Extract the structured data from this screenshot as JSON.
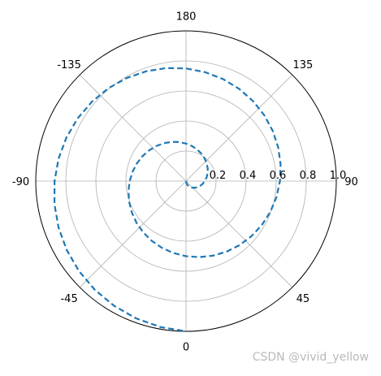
{
  "chart_data": {
    "type": "line",
    "projection": "polar",
    "theta_zero_location": "bottom",
    "theta_direction": "counterclockwise",
    "theta_unit": "degrees",
    "angle_labels": [
      {
        "angle": 0,
        "label": "0"
      },
      {
        "angle": 45,
        "label": "45"
      },
      {
        "angle": 90,
        "label": "90"
      },
      {
        "angle": 135,
        "label": "135"
      },
      {
        "angle": 180,
        "label": "180"
      },
      {
        "angle": -135,
        "label": "-135"
      },
      {
        "angle": -90,
        "label": "-90"
      },
      {
        "angle": -45,
        "label": "-45"
      }
    ],
    "r_ticks": [
      0.2,
      0.4,
      0.6,
      0.8,
      1.0
    ],
    "r_tick_labels": [
      "0.2",
      "0.4",
      "0.6",
      "0.8",
      "1.0"
    ],
    "rlim": [
      0,
      1.0
    ],
    "r_label_angle": 90,
    "grid": true,
    "series": [
      {
        "line_style": "dashed",
        "color": "#1f77b4",
        "theta": [
          0,
          10,
          20,
          30,
          40,
          50,
          60,
          70,
          80,
          90,
          100,
          110,
          120,
          130,
          140,
          150,
          160,
          170,
          180,
          190,
          200,
          210,
          220,
          230,
          240,
          250,
          260,
          270,
          280,
          290,
          300,
          310,
          320,
          330,
          340,
          350,
          360,
          370,
          380,
          390,
          400,
          410,
          420,
          430,
          440,
          450,
          460,
          470,
          480,
          490,
          500,
          510,
          520,
          530,
          540,
          550,
          560,
          570,
          580,
          590,
          600,
          610,
          620,
          630,
          640,
          650,
          660,
          670,
          680,
          690,
          700,
          710,
          720
        ],
        "r": [
          0.0,
          0.0139,
          0.0278,
          0.0417,
          0.0556,
          0.0694,
          0.0833,
          0.0972,
          0.1111,
          0.125,
          0.1389,
          0.1528,
          0.1667,
          0.1806,
          0.1944,
          0.2083,
          0.2222,
          0.2361,
          0.25,
          0.2639,
          0.2778,
          0.2917,
          0.3056,
          0.3194,
          0.3333,
          0.3472,
          0.3611,
          0.375,
          0.3889,
          0.4028,
          0.4167,
          0.4306,
          0.4444,
          0.4583,
          0.4722,
          0.4861,
          0.5,
          0.5139,
          0.5278,
          0.5417,
          0.5556,
          0.5694,
          0.5833,
          0.5972,
          0.6111,
          0.625,
          0.6389,
          0.6528,
          0.6667,
          0.6806,
          0.6944,
          0.7083,
          0.7222,
          0.7361,
          0.75,
          0.7639,
          0.7778,
          0.7917,
          0.8056,
          0.8194,
          0.8333,
          0.8472,
          0.8611,
          0.875,
          0.8889,
          0.9028,
          0.9167,
          0.9306,
          0.9444,
          0.9583,
          0.9722,
          0.9861,
          1.0
        ]
      }
    ]
  },
  "watermark": "CSDN @vivid_yellow",
  "colors": {
    "grid": "#b0b0b0",
    "spine": "#000000",
    "line": "#1f77b4",
    "watermark": "#b9b9b9"
  }
}
